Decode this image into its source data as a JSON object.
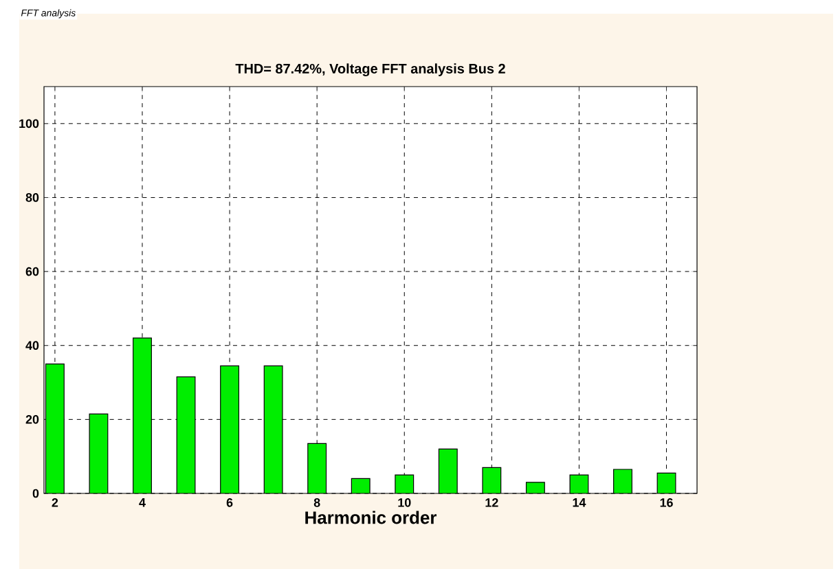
{
  "chart_data": {
    "type": "bar",
    "title": "THD= 87.42%,  Voltage FFT analysis Bus 2",
    "xlabel": "Harmonic order",
    "annotations": [
      "FFT analysis"
    ],
    "x": [
      2,
      3,
      4,
      5,
      6,
      7,
      8,
      9,
      10,
      11,
      12,
      13,
      14,
      15,
      16
    ],
    "values": [
      35,
      21.5,
      42,
      31.5,
      34.5,
      34.5,
      13.5,
      4,
      5,
      12,
      7,
      3,
      5,
      6.5,
      5.5
    ],
    "color": "#00ee00",
    "xlim": [
      1.75,
      16.7
    ],
    "xticks": [
      2,
      4,
      6,
      8,
      10,
      12,
      14,
      16
    ],
    "ylim": [
      0,
      110
    ],
    "yticks": [
      0,
      20,
      40,
      60,
      80,
      100
    ],
    "grid": true
  }
}
